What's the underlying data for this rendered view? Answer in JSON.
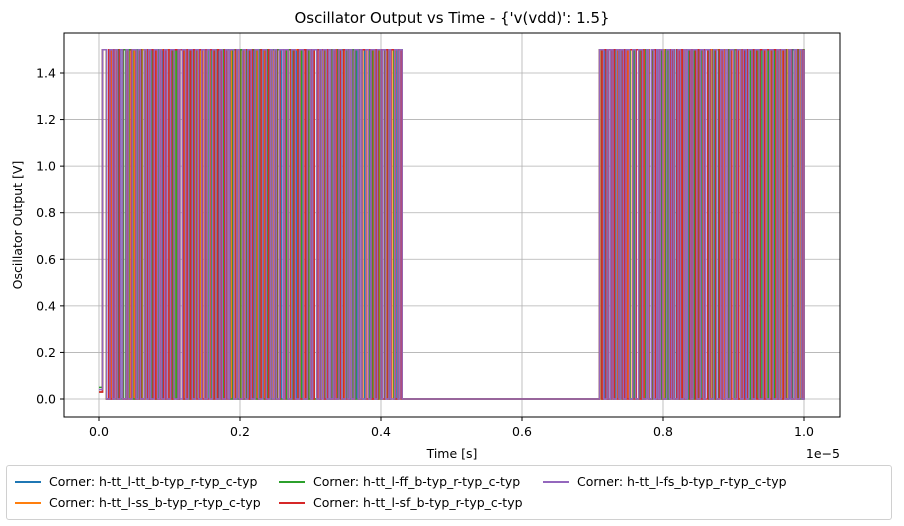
{
  "chart_data": {
    "type": "line",
    "title": "Oscillator Output vs Time - {'v(vdd)': 1.5}",
    "xlabel": "Time [s]",
    "ylabel": "Oscillator Output [V]",
    "x_offset_label": "1e−5",
    "x_scale": 1e-05,
    "xlim": [
      -0.05,
      1.05
    ],
    "ylim": [
      -0.075,
      1.575
    ],
    "x_ticks": [
      "0.0",
      "0.2",
      "0.4",
      "0.6",
      "0.8",
      "1.0"
    ],
    "y_ticks": [
      "0.0",
      "0.2",
      "0.4",
      "0.6",
      "0.8",
      "1.0",
      "1.2",
      "1.4"
    ],
    "grid": true,
    "legend_position": "below plot, 3 columns",
    "signal_description": "Square-wave oscillation between 0.0 V and 1.5 V from ~0.005e-5 s to ~0.43e-5 s; flat at ~0.0 V from ~0.43e-5 s to ~0.71e-5 s; oscillation resumes between 0.0 V and 1.5 V from ~0.71e-5 s to 1.0e-5 s. Initial value at t=0 is ~0.03-0.05 V.",
    "segments": [
      {
        "t_start": 0.0,
        "t_end": 0.005,
        "state": "initial",
        "value": 0.04
      },
      {
        "t_start": 0.005,
        "t_end": 0.43,
        "state": "oscillating",
        "low": 0.0,
        "high": 1.5
      },
      {
        "t_start": 0.43,
        "t_end": 0.71,
        "state": "flat",
        "value": 0.0
      },
      {
        "t_start": 0.71,
        "t_end": 1.0,
        "state": "oscillating",
        "low": 0.0,
        "high": 1.5
      }
    ],
    "series": [
      {
        "name": "Corner: h-tt_l-tt_b-typ_r-typ_c-typ",
        "color": "#1f77b4",
        "low": 0.0,
        "high": 1.5,
        "initial": 0.03
      },
      {
        "name": "Corner: h-tt_l-ss_b-typ_r-typ_c-typ",
        "color": "#ff7f0e",
        "low": 0.0,
        "high": 1.5,
        "initial": 0.03
      },
      {
        "name": "Corner: h-tt_l-ff_b-typ_r-typ_c-typ",
        "color": "#2ca02c",
        "low": 0.0,
        "high": 1.5,
        "initial": 0.05,
        "final": 1.44
      },
      {
        "name": "Corner: h-tt_l-sf_b-typ_r-typ_c-typ",
        "color": "#d62728",
        "low": 0.0,
        "high": 1.5,
        "initial": 0.03,
        "final": 0.0
      },
      {
        "name": "Corner: h-tt_l-fs_b-typ_r-typ_c-typ",
        "color": "#9467bd",
        "low": 0.0,
        "high": 1.5,
        "initial": 0.04
      }
    ]
  },
  "legend": {
    "items": [
      {
        "label": "Corner: h-tt_l-tt_b-typ_r-typ_c-typ",
        "color": "#1f77b4"
      },
      {
        "label": "Corner: h-tt_l-ss_b-typ_r-typ_c-typ",
        "color": "#ff7f0e"
      },
      {
        "label": "Corner: h-tt_l-ff_b-typ_r-typ_c-typ",
        "color": "#2ca02c"
      },
      {
        "label": "Corner: h-tt_l-sf_b-typ_r-typ_c-typ",
        "color": "#d62728"
      },
      {
        "label": "Corner: h-tt_l-fs_b-typ_r-typ_c-typ",
        "color": "#9467bd"
      }
    ]
  }
}
